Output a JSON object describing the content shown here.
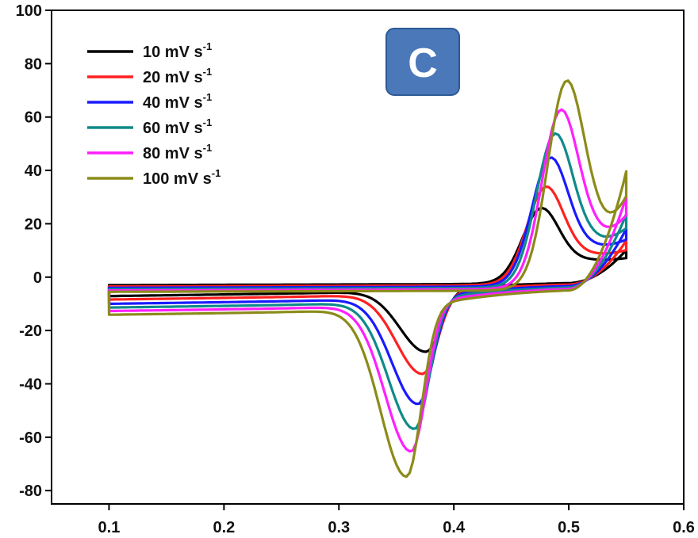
{
  "chart_data": {
    "type": "line",
    "panel_label": "C",
    "panel_color": "#4a78b8",
    "xlabel": "",
    "ylabel": "",
    "xlim": [
      0.05,
      0.6
    ],
    "ylim": [
      -85,
      100
    ],
    "x_ticks": [
      0.1,
      0.2,
      0.3,
      0.4,
      0.5,
      0.6
    ],
    "y_ticks": [
      -80,
      -60,
      -40,
      -20,
      0,
      20,
      40,
      60,
      80,
      100
    ],
    "grid": false,
    "legend_position": "top-left",
    "series": [
      {
        "name": "10 mV s-1",
        "legend_main": "10 mV s",
        "legend_sup": "-1",
        "color": "#000000",
        "anodic_peak": {
          "x": 0.475,
          "y": 30
        },
        "cathodic_peak": {
          "x": 0.376,
          "y": -26
        },
        "start_y": -3,
        "end_y": 10
      },
      {
        "name": "20 mV s-1",
        "legend_main": "20 mV s",
        "legend_sup": "-1",
        "color": "#ff2020",
        "anodic_peak": {
          "x": 0.479,
          "y": 39
        },
        "cathodic_peak": {
          "x": 0.373,
          "y": -34
        },
        "start_y": -3.5,
        "end_y": 14
      },
      {
        "name": "40 mV s-1",
        "legend_main": "40 mV s",
        "legend_sup": "-1",
        "color": "#1a1aff",
        "anodic_peak": {
          "x": 0.483,
          "y": 51
        },
        "cathodic_peak": {
          "x": 0.369,
          "y": -45
        },
        "start_y": -4,
        "end_y": 19
      },
      {
        "name": "60 mV s-1",
        "legend_main": "60 mV s",
        "legend_sup": "-1",
        "color": "#0f8a8a",
        "anodic_peak": {
          "x": 0.487,
          "y": 61
        },
        "cathodic_peak": {
          "x": 0.366,
          "y": -54
        },
        "start_y": -4.5,
        "end_y": 25
      },
      {
        "name": "80 mV s-1",
        "legend_main": "80 mV s",
        "legend_sup": "-1",
        "color": "#ff1fff",
        "anodic_peak": {
          "x": 0.492,
          "y": 71
        },
        "cathodic_peak": {
          "x": 0.363,
          "y": -62
        },
        "start_y": -5,
        "end_y": 32
      },
      {
        "name": "100 mV s-1",
        "legend_main": "100 mV s",
        "legend_sup": "-1",
        "color": "#8b8b1a",
        "anodic_peak": {
          "x": 0.497,
          "y": 83
        },
        "cathodic_peak": {
          "x": 0.359,
          "y": -71
        },
        "start_y": -5.5,
        "end_y": 42
      }
    ]
  }
}
